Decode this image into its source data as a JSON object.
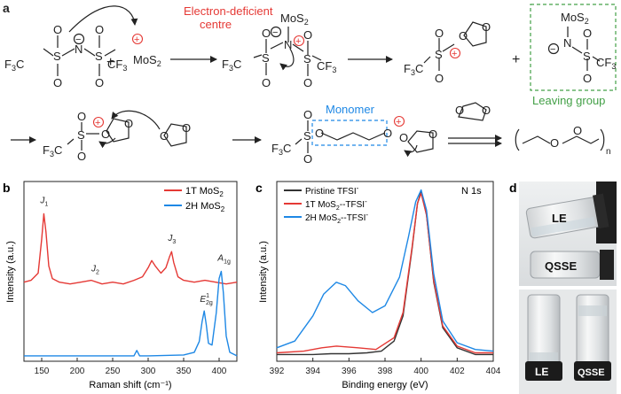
{
  "panels": {
    "a": "a",
    "b": "b",
    "c": "c",
    "d": "d"
  },
  "scheme": {
    "electron_deficient": "Electron-deficient",
    "centre": "centre",
    "monomer": "Monomer",
    "leaving_group": "Leaving group",
    "mos2": "MoS",
    "sub2": "2",
    "cf3": "CF",
    "f3c": "F",
    "sub3": "3",
    "c_suffix": "C",
    "n_sub": "n",
    "plus": "+",
    "minus": "−",
    "atoms": {
      "S": "S",
      "N": "N",
      "O": "O"
    }
  },
  "chart_data": [
    {
      "type": "line",
      "panel": "b",
      "xlabel": "Raman shift (cm⁻¹)",
      "ylabel": "Intensity (a.u.)",
      "xlim": [
        125,
        425
      ],
      "xticks": [
        150,
        200,
        250,
        300,
        350,
        400
      ],
      "legend_position": "top-right",
      "series": [
        {
          "name": "1T MoS2",
          "name_main": "1T MoS",
          "name_sub": "2",
          "color": "#e53935",
          "x": [
            125,
            135,
            145,
            150,
            153,
            156,
            160,
            165,
            175,
            190,
            205,
            220,
            235,
            250,
            265,
            280,
            292,
            300,
            305,
            310,
            318,
            325,
            330,
            333,
            336,
            342,
            350,
            365,
            380,
            395,
            410,
            425
          ],
          "y": [
            0.44,
            0.45,
            0.49,
            0.68,
            0.82,
            0.72,
            0.53,
            0.46,
            0.44,
            0.43,
            0.44,
            0.45,
            0.43,
            0.44,
            0.43,
            0.45,
            0.47,
            0.52,
            0.56,
            0.53,
            0.49,
            0.52,
            0.58,
            0.61,
            0.55,
            0.47,
            0.45,
            0.44,
            0.45,
            0.44,
            0.43,
            0.44
          ]
        },
        {
          "name": "2H MoS2",
          "name_main": "2H MoS",
          "name_sub": "2",
          "color": "#1e88e5",
          "x": [
            125,
            150,
            200,
            250,
            280,
            284,
            288,
            300,
            350,
            365,
            372,
            376,
            379,
            382,
            385,
            390,
            396,
            400,
            403,
            406,
            410,
            415,
            425
          ],
          "y": [
            0.03,
            0.03,
            0.03,
            0.03,
            0.03,
            0.06,
            0.03,
            0.03,
            0.035,
            0.05,
            0.11,
            0.22,
            0.28,
            0.2,
            0.1,
            0.09,
            0.27,
            0.46,
            0.5,
            0.38,
            0.14,
            0.05,
            0.03
          ]
        }
      ],
      "annotations": [
        {
          "label": "J1",
          "main": "J",
          "sub": "1",
          "x": 153
        },
        {
          "label": "J2",
          "main": "J",
          "sub": "2",
          "x": 225
        },
        {
          "label": "J3",
          "main": "J",
          "sub": "3",
          "x": 333
        },
        {
          "label": "E1 2g",
          "main": "E",
          "sub": "2g",
          "sup": "1",
          "x": 378
        },
        {
          "label": "A1g",
          "main": "A",
          "sub": "1g",
          "x": 403
        }
      ]
    },
    {
      "type": "line",
      "panel": "c",
      "xlabel": "Binding energy (eV)",
      "ylabel": "Intensity (a.u.)",
      "xlim": [
        392,
        404
      ],
      "xticks": [
        392,
        394,
        396,
        398,
        400,
        402,
        404
      ],
      "note": "N 1s",
      "legend_position": "top-left",
      "series": [
        {
          "name": "Pristine TFSI-",
          "name_main": "Pristine TFSI",
          "name_sup": "-",
          "color": "#333333",
          "x": [
            392,
            394,
            395,
            396,
            397,
            397.8,
            398.5,
            399,
            399.5,
            399.8,
            400,
            400.3,
            400.7,
            401.2,
            402,
            403,
            404
          ],
          "y": [
            0.02,
            0.02,
            0.025,
            0.025,
            0.03,
            0.04,
            0.1,
            0.25,
            0.65,
            0.92,
            0.99,
            0.85,
            0.45,
            0.18,
            0.06,
            0.02,
            0.02
          ]
        },
        {
          "name": "1T MoS2--TFSI-",
          "name_main": "1T MoS",
          "name_sub": "2",
          "name_tail": "--TFSI",
          "name_sup": "-",
          "color": "#e53935",
          "x": [
            392,
            393.5,
            394.5,
            395.3,
            396.5,
            397.5,
            398.5,
            399,
            399.5,
            399.8,
            400,
            400.3,
            400.7,
            401.2,
            402,
            403,
            404
          ],
          "y": [
            0.03,
            0.04,
            0.06,
            0.07,
            0.06,
            0.05,
            0.12,
            0.27,
            0.66,
            0.92,
            0.98,
            0.85,
            0.46,
            0.19,
            0.07,
            0.03,
            0.03
          ]
        },
        {
          "name": "2H MoS2--TFSI-",
          "name_main": "2H MoS",
          "name_sub": "2",
          "name_tail": "--TFSI",
          "name_sup": "-",
          "color": "#1e88e5",
          "x": [
            392,
            393,
            394,
            394.6,
            395.3,
            395.8,
            396.5,
            397.3,
            398,
            398.8,
            399.3,
            399.7,
            400,
            400.3,
            400.7,
            401.2,
            402,
            403,
            404
          ],
          "y": [
            0.06,
            0.1,
            0.25,
            0.38,
            0.45,
            0.43,
            0.34,
            0.27,
            0.31,
            0.48,
            0.72,
            0.93,
            1.0,
            0.88,
            0.5,
            0.22,
            0.09,
            0.05,
            0.04
          ]
        }
      ]
    }
  ],
  "photos": {
    "le_top": "LE",
    "qsse_top": "QSSE",
    "le_bottom": "LE",
    "qsse_bottom": "QSSE"
  },
  "colors": {
    "red": "#e53935",
    "blue": "#1e88e5",
    "green": "#43a047",
    "ink": "#222222"
  }
}
